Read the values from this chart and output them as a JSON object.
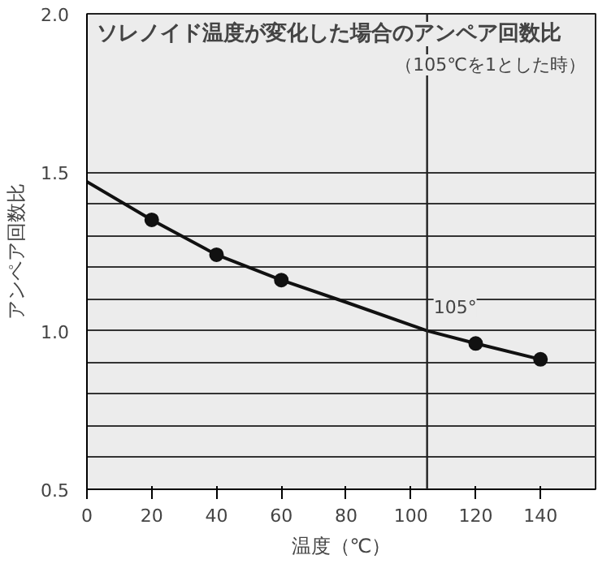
{
  "chart_data": {
    "type": "line",
    "title": "ソレノイド温度が変化した場合のアンペア回数比",
    "subtitle": "（105℃を1とした時）",
    "xlabel": "温度（℃）",
    "ylabel": "アンペア回数比",
    "x": [
      0,
      20,
      40,
      60,
      80,
      105,
      120,
      140
    ],
    "series": [
      {
        "color": "#111111",
        "marker": "none",
        "values": [
          1.47,
          1.35,
          1.24,
          1.16,
          1.09,
          1.0,
          0.96,
          0.91
        ]
      },
      {
        "type": "scatter",
        "color": "#111111",
        "marker": "circle",
        "x": [
          20,
          40,
          60,
          120,
          140
        ],
        "values": [
          1.35,
          1.24,
          1.16,
          0.96,
          0.91
        ]
      }
    ],
    "xlim": [
      0,
      157
    ],
    "xticks": [
      0,
      20,
      40,
      60,
      80,
      100,
      120,
      140
    ],
    "ylim": [
      0.5,
      2.0
    ],
    "yticks": [
      {
        "value": 0.5,
        "label": "0.5"
      },
      {
        "value": 0.6,
        "label": null
      },
      {
        "value": 0.7,
        "label": null
      },
      {
        "value": 0.8,
        "label": null
      },
      {
        "value": 0.9,
        "label": null
      },
      {
        "value": 1.0,
        "label": "1.0"
      },
      {
        "value": 1.1,
        "label": null
      },
      {
        "value": 1.2,
        "label": null
      },
      {
        "value": 1.3,
        "label": null
      },
      {
        "value": 1.4,
        "label": null
      },
      {
        "value": 1.5,
        "label": "1.5"
      },
      {
        "value": 2.0,
        "label": "2.0"
      }
    ],
    "ref_lines": [
      {
        "axis": "x",
        "value": 105,
        "label": "105°"
      }
    ],
    "grid": "y"
  }
}
